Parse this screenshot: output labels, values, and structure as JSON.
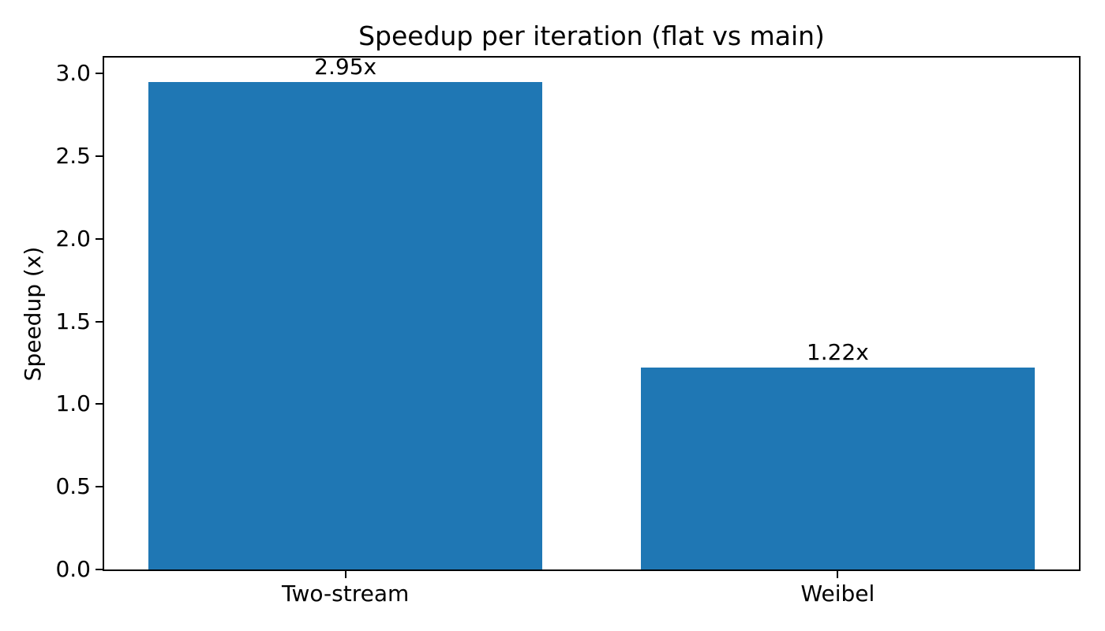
{
  "figure": {
    "title": "Speedup per iteration (flat vs main)",
    "ylabel": "Speedup (x)"
  },
  "chart_data": {
    "type": "bar",
    "title": "Speedup per iteration (flat vs main)",
    "categories": [
      "Two-stream",
      "Weibel"
    ],
    "values": [
      2.95,
      1.22
    ],
    "bar_labels": [
      "2.95x",
      "1.22x"
    ],
    "xlabel": "",
    "ylabel": "Speedup (x)",
    "ylim": [
      0,
      3.0975
    ],
    "yticks": [
      0.0,
      0.5,
      1.0,
      1.5,
      2.0,
      2.5,
      3.0
    ],
    "ytick_labels": [
      "0.0",
      "0.5",
      "1.0",
      "1.5",
      "2.0",
      "2.5",
      "3.0"
    ],
    "xlim": [
      -0.49,
      1.49
    ],
    "bar_width": 0.8,
    "grid": false,
    "legend": null,
    "bar_color": "#1f77b4",
    "text_color": "#000000",
    "background_color": "#ffffff"
  }
}
